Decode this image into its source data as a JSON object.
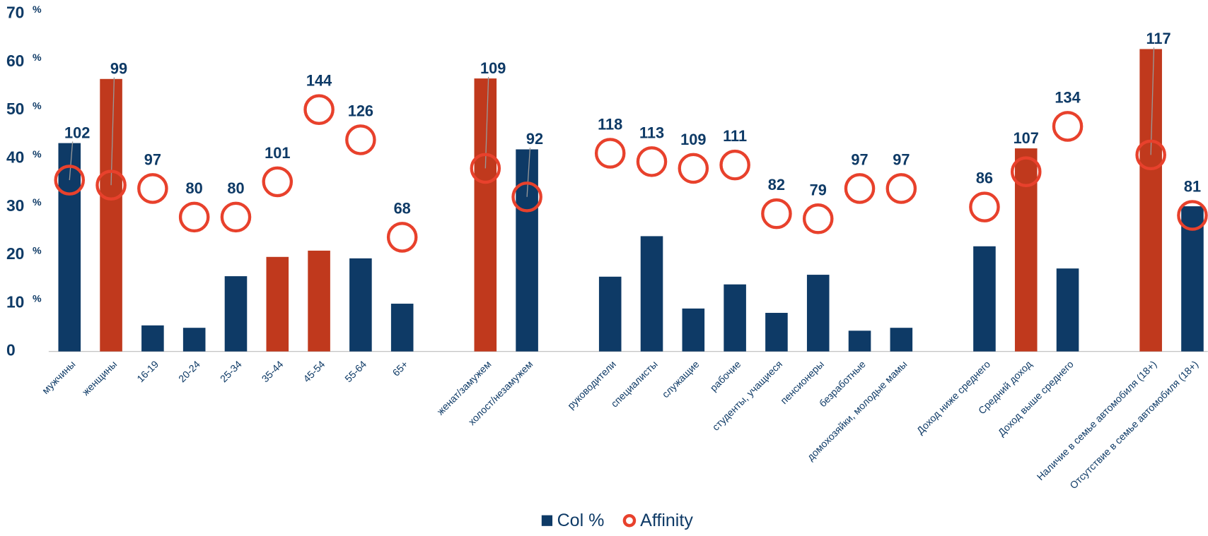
{
  "chart_data": {
    "type": "bar",
    "categories": [
      "мужчины",
      "женщины",
      "16-19",
      "20-24",
      "25-34",
      "35-44",
      "45-54",
      "55-64",
      "65+",
      null,
      "женат/замужем",
      "холост/незамужем",
      null,
      "руководители",
      "специалисты",
      "служащие",
      "рабочие",
      "студенты, учащиеся",
      "пенсионеры",
      "безработные",
      "домохозяйки, молодые мамы",
      null,
      "Доход ниже среднего",
      "Средний доход",
      "Доход выше среднего",
      null,
      "Наличие в семье автомобиля (18+)",
      "Отсутствие в семье автомобиля (18+)"
    ],
    "series": [
      {
        "name": "Col %",
        "color": "#0e3a66",
        "colors": [
          "#0e3a66",
          "#c0391d",
          "#0e3a66",
          "#0e3a66",
          "#0e3a66",
          "#c0391d",
          "#c0391d",
          "#0e3a66",
          "#0e3a66",
          null,
          "#c0391d",
          "#0e3a66",
          null,
          "#0e3a66",
          "#0e3a66",
          "#0e3a66",
          "#0e3a66",
          "#0e3a66",
          "#0e3a66",
          "#0e3a66",
          "#0e3a66",
          null,
          "#0e3a66",
          "#c0391d",
          "#0e3a66",
          null,
          "#c0391d",
          "#0e3a66"
        ],
        "values": [
          43.2,
          56.5,
          5.4,
          4.9,
          15.6,
          19.6,
          20.9,
          19.3,
          9.9,
          null,
          56.6,
          41.9,
          null,
          15.5,
          23.9,
          8.9,
          13.9,
          8.0,
          15.9,
          4.3,
          4.9,
          null,
          21.8,
          42.1,
          17.2,
          null,
          62.7,
          30.1
        ]
      },
      {
        "name": "Affinity",
        "color": "#e8412c",
        "axis": "y2",
        "values": [
          102,
          99,
          97,
          80,
          80,
          101,
          144,
          126,
          68,
          null,
          109,
          92,
          null,
          118,
          113,
          109,
          111,
          82,
          79,
          97,
          97,
          null,
          86,
          107,
          134,
          null,
          117,
          81
        ]
      }
    ],
    "ylim": [
      0,
      70
    ],
    "yticks": [
      0,
      10,
      20,
      30,
      40,
      50,
      60,
      70
    ],
    "y_unit": "%",
    "y2lim": [
      0,
      201
    ]
  }
}
